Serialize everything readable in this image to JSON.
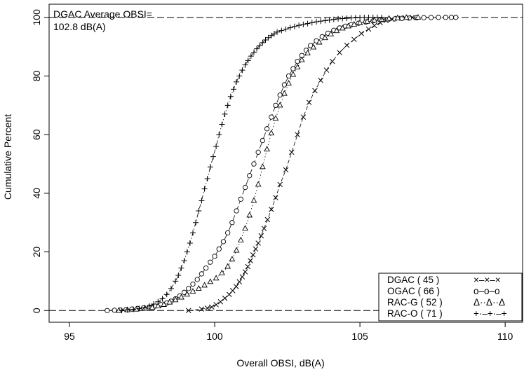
{
  "chart_data": {
    "type": "scatter",
    "title": "",
    "xlabel": "Overall OBSI, dB(A)",
    "ylabel": "Cumulative Percent",
    "xlim": [
      94.3,
      110.6
    ],
    "ylim": [
      -4,
      104.5
    ],
    "xticks": [
      "95",
      "100",
      "105",
      "110"
    ],
    "yticks": [
      "0",
      "20",
      "40",
      "60",
      "80",
      "100"
    ],
    "reference_lines_y": [
      0,
      100
    ],
    "annotation": [
      "DGAC Average OBSI=",
      "102.8 dB(A)"
    ],
    "legend_position": "bottom-right",
    "series": [
      {
        "name": "DGAC ( 45 )",
        "marker": "x",
        "line": "dash",
        "legend_sample": "×–×–×",
        "x": [
          99.1,
          99.55,
          99.75,
          99.9,
          100.05,
          100.2,
          100.35,
          100.5,
          100.62,
          100.74,
          100.85,
          100.95,
          101.05,
          101.14,
          101.23,
          101.32,
          101.41,
          101.5,
          101.6,
          101.7,
          101.82,
          101.95,
          102.1,
          102.25,
          102.45,
          102.65,
          102.85,
          103.05,
          103.25,
          103.45,
          103.65,
          103.85,
          104.05,
          104.3,
          104.55,
          104.8,
          105.05,
          105.3,
          105.5,
          105.7,
          105.9,
          106.1,
          106.3,
          106.55,
          106.8
        ],
        "y": [
          0,
          0.5,
          0.8,
          1.2,
          2,
          3,
          4.2,
          5.5,
          6.8,
          8.2,
          9.8,
          11.5,
          13.2,
          15,
          17,
          19,
          21,
          23,
          25.5,
          28,
          31,
          34.5,
          38.5,
          43,
          48,
          54,
          60,
          66,
          71,
          75,
          78.5,
          82,
          85,
          88,
          90.5,
          92.5,
          94.5,
          96,
          97.2,
          98.2,
          98.9,
          99.4,
          99.7,
          99.9,
          100
        ]
      },
      {
        "name": "OGAC ( 66 )",
        "marker": "circle",
        "line": "longdash",
        "legend_sample": "o–o–o",
        "x": [
          96.3,
          96.55,
          96.75,
          96.95,
          97.15,
          97.35,
          97.55,
          97.75,
          97.95,
          98.15,
          98.35,
          98.5,
          98.65,
          98.8,
          98.95,
          99.1,
          99.25,
          99.4,
          99.55,
          99.7,
          99.85,
          100,
          100.15,
          100.3,
          100.45,
          100.6,
          100.75,
          100.9,
          101.05,
          101.2,
          101.35,
          101.5,
          101.65,
          101.8,
          101.95,
          102.1,
          102.25,
          102.4,
          102.55,
          102.7,
          102.85,
          103,
          103.15,
          103.3,
          103.5,
          103.7,
          103.9,
          104.1,
          104.3,
          104.5,
          104.7,
          104.95,
          105.2,
          105.45,
          105.7,
          105.95,
          106.2,
          106.45,
          106.7,
          106.95,
          107.2,
          107.45,
          107.7,
          107.95,
          108.15,
          108.3
        ],
        "y": [
          0,
          0.1,
          0.2,
          0.35,
          0.5,
          0.7,
          0.9,
          1.2,
          1.5,
          2,
          2.6,
          3.2,
          4,
          5,
          6.2,
          7.5,
          9,
          10.6,
          12.5,
          14.5,
          16.5,
          18.5,
          21,
          23.5,
          26.5,
          30,
          34,
          38,
          42,
          46,
          50,
          54,
          58,
          62,
          66,
          70,
          73.5,
          77,
          80,
          82.5,
          85,
          87,
          88.8,
          90.4,
          92,
          93.4,
          94.6,
          95.6,
          96.4,
          97,
          97.5,
          98,
          98.4,
          98.8,
          99.1,
          99.3,
          99.5,
          99.65,
          99.75,
          99.85,
          99.9,
          99.95,
          100,
          100,
          100,
          100
        ]
      },
      {
        "name": "RAC-G ( 52 )",
        "marker": "triangle",
        "line": "dot",
        "legend_sample": "Δ··Δ··Δ",
        "x": [
          96.7,
          97,
          97.3,
          97.6,
          97.85,
          98.05,
          98.25,
          98.45,
          98.65,
          98.85,
          99.05,
          99.25,
          99.45,
          99.65,
          99.85,
          100.05,
          100.25,
          100.45,
          100.6,
          100.75,
          100.9,
          101.05,
          101.2,
          101.35,
          101.5,
          101.65,
          101.8,
          101.95,
          102.1,
          102.25,
          102.4,
          102.55,
          102.7,
          102.85,
          103,
          103.2,
          103.4,
          103.6,
          103.8,
          104,
          104.2,
          104.4,
          104.6,
          104.8,
          105,
          105.25,
          105.5,
          105.75,
          106,
          106.3,
          106.6,
          107
        ],
        "y": [
          0,
          0.2,
          0.4,
          0.7,
          1,
          1.5,
          2,
          2.8,
          3.6,
          4.5,
          5.5,
          6.5,
          7.5,
          8.6,
          9.8,
          11,
          12.8,
          15,
          17.5,
          20.5,
          24,
          28,
          32.5,
          37.5,
          43,
          49,
          55,
          60.5,
          65.5,
          70,
          74,
          77.5,
          80.5,
          83,
          85.5,
          87.8,
          89.8,
          91.5,
          93,
          94.3,
          95.4,
          96.3,
          97,
          97.6,
          98.1,
          98.6,
          99,
          99.3,
          99.6,
          99.8,
          99.9,
          100
        ]
      },
      {
        "name": "RAC-O ( 71 )",
        "marker": "plus",
        "line": "dashdot",
        "legend_sample": "+·–+·–+",
        "x": [
          96.8,
          97,
          97.2,
          97.4,
          97.6,
          97.75,
          97.9,
          98.05,
          98.2,
          98.35,
          98.5,
          98.65,
          98.75,
          98.85,
          98.95,
          99.05,
          99.15,
          99.25,
          99.35,
          99.45,
          99.55,
          99.65,
          99.75,
          99.85,
          99.95,
          100.05,
          100.15,
          100.25,
          100.35,
          100.45,
          100.55,
          100.65,
          100.75,
          100.85,
          100.95,
          101.05,
          101.15,
          101.25,
          101.35,
          101.45,
          101.55,
          101.65,
          101.75,
          101.85,
          101.95,
          102.05,
          102.15,
          102.3,
          102.45,
          102.6,
          102.75,
          102.9,
          103.05,
          103.2,
          103.35,
          103.5,
          103.65,
          103.8,
          103.95,
          104.1,
          104.25,
          104.4,
          104.55,
          104.7,
          104.85,
          105,
          105.15,
          105.3,
          105.45,
          105.6,
          105.75
        ],
        "y": [
          0,
          0.2,
          0.4,
          0.7,
          1,
          1.5,
          2.2,
          3,
          4,
          5.5,
          7.5,
          10,
          12,
          14.5,
          17,
          20,
          23,
          26.5,
          30,
          34,
          37.5,
          41.5,
          45,
          49,
          52.5,
          56,
          60,
          63.5,
          67,
          70,
          73,
          75.5,
          78,
          80,
          82,
          83.8,
          85.3,
          86.8,
          88.1,
          89.3,
          90.4,
          91.4,
          92.3,
          93.1,
          93.8,
          94.4,
          95,
          95.5,
          96,
          96.5,
          96.9,
          97.3,
          97.6,
          97.9,
          98.2,
          98.5,
          98.7,
          98.9,
          99.1,
          99.3,
          99.5,
          99.6,
          99.7,
          99.8,
          99.85,
          99.9,
          99.95,
          100,
          100,
          100,
          100
        ]
      }
    ]
  }
}
